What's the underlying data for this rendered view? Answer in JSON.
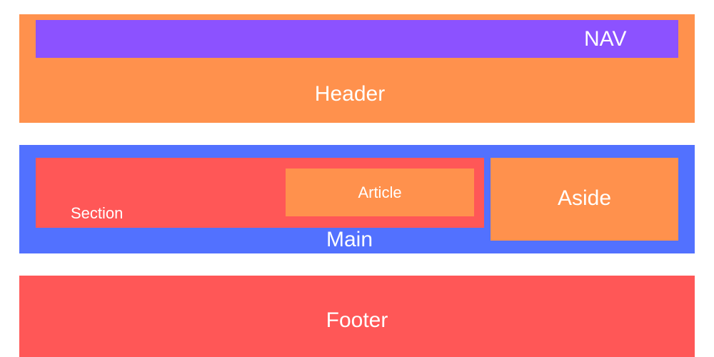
{
  "colors": {
    "header": "#ff914d",
    "nav": "#8c52ff",
    "main": "#5271ff",
    "section": "#ff5757",
    "article": "#ff914d",
    "aside": "#ff914d",
    "footer": "#ff5757",
    "text": "#ffffff"
  },
  "header": {
    "label": "Header",
    "nav": {
      "label": "NAV"
    }
  },
  "main": {
    "label": "Main",
    "section": {
      "label": "Section",
      "article": {
        "label": "Article"
      }
    },
    "aside": {
      "label": "Aside"
    }
  },
  "footer": {
    "label": "Footer"
  }
}
